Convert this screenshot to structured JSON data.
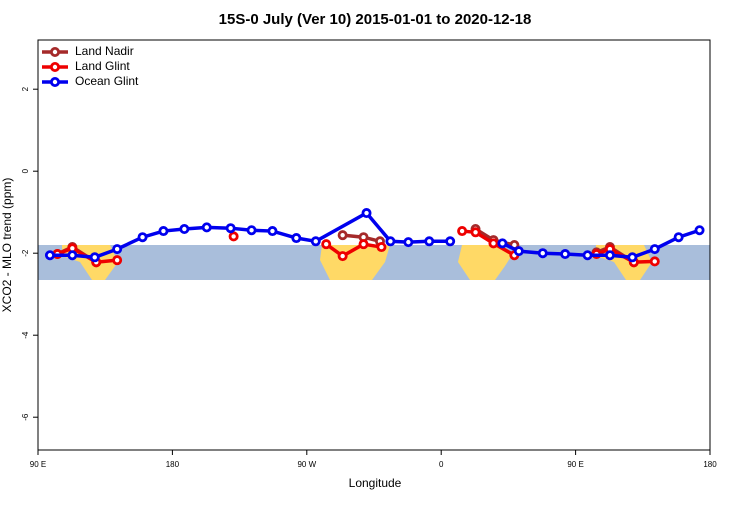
{
  "chart_data": {
    "type": "line",
    "title": "15S-0 July (Ver 10)   2015-01-01 to 2020-12-18",
    "x_label": "Longitude",
    "y_label": "XCO2 - MLO trend (ppm)",
    "xlim": [
      90,
      540
    ],
    "xticks": [
      {
        "value": 90,
        "label": "90 E"
      },
      {
        "value": 180,
        "label": "180"
      },
      {
        "value": 270,
        "label": "90 W"
      },
      {
        "value": 360,
        "label": "0"
      },
      {
        "value": 450,
        "label": "90 E"
      },
      {
        "value": 540,
        "label": "180"
      }
    ],
    "ylim": [
      -6.8,
      3.2
    ],
    "yticks": [
      -6,
      -4,
      -2,
      0,
      2
    ],
    "legend": "topleft",
    "series": [
      {
        "name": "Land Nadir",
        "color": "#a52a2a",
        "x": [
          103,
          113,
          129,
          null,
          294,
          308,
          319,
          null,
          383,
          395,
          409,
          null,
          464,
          473,
          489
        ],
        "values": [
          -2.02,
          -1.85,
          -2.22,
          null,
          -1.56,
          -1.61,
          -1.71,
          null,
          -1.41,
          -1.68,
          -1.8,
          null,
          -1.98,
          -1.85,
          -2.22
        ]
      },
      {
        "name": "Land Glint",
        "color": "#ee0000",
        "x": [
          103,
          113,
          129,
          143,
          null,
          221,
          null,
          283,
          294,
          308,
          320,
          null,
          374,
          383,
          395,
          409,
          null,
          464,
          473,
          489,
          503
        ],
        "values": [
          -2.02,
          -1.88,
          -2.22,
          -2.17,
          null,
          -1.59,
          null,
          -1.78,
          -2.07,
          -1.78,
          -1.85,
          null,
          -1.46,
          -1.49,
          -1.76,
          -2.05,
          null,
          -2.02,
          -1.9,
          -2.22,
          -2.2
        ]
      },
      {
        "name": "Ocean Glint",
        "color": "#0000ee",
        "x": [
          98,
          113,
          128,
          143,
          160,
          174,
          188,
          203,
          219,
          233,
          247,
          263,
          276,
          310,
          326,
          338,
          352,
          366,
          null,
          401,
          412,
          428,
          443,
          458,
          473,
          488,
          503,
          519,
          533
        ],
        "values": [
          -2.05,
          -2.05,
          -2.1,
          -1.9,
          -1.61,
          -1.46,
          -1.41,
          -1.37,
          -1.39,
          -1.44,
          -1.46,
          -1.63,
          -1.71,
          -1.02,
          -1.71,
          -1.73,
          -1.71,
          -1.71,
          null,
          -1.76,
          -1.95,
          -2.0,
          -2.02,
          -2.05,
          -2.05,
          -2.1,
          -1.9,
          -1.61,
          -1.44
        ]
      }
    ]
  }
}
